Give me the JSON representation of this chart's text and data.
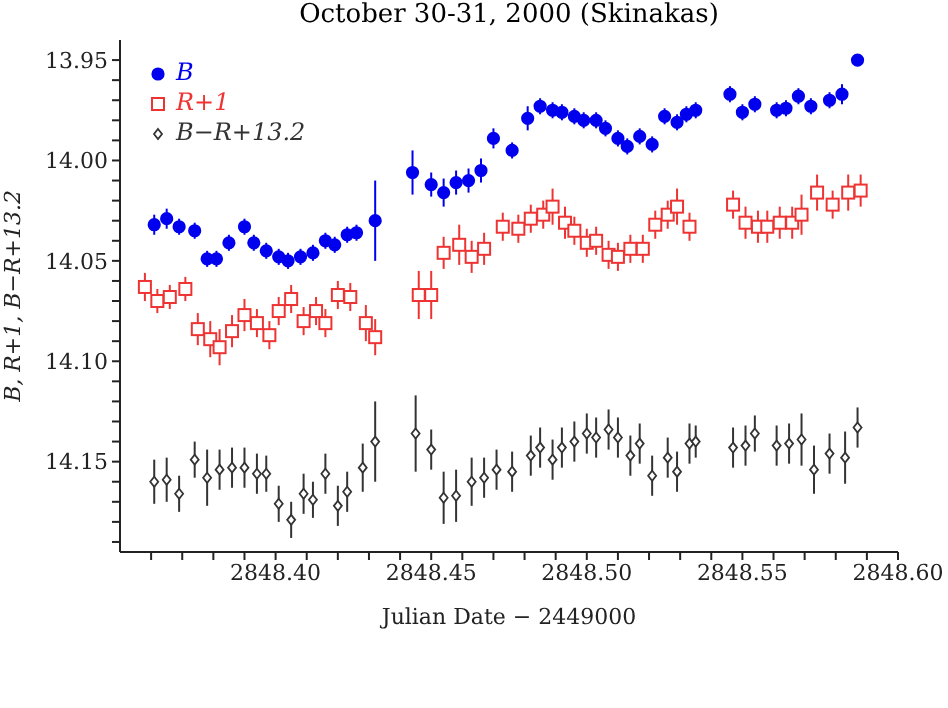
{
  "chart_data": {
    "type": "scatter",
    "title": "October 30-31, 2000 (Skinakas)",
    "xlabel": "Julian Date − 2449000",
    "ylabel": "B, R+1, B−R+13.2",
    "xlim": [
      2848.35,
      2848.6
    ],
    "ylim": [
      14.195,
      13.94
    ],
    "xticks": [
      {
        "value": 2848.36,
        "label": null
      },
      {
        "value": 2848.37,
        "label": null
      },
      {
        "value": 2848.38,
        "label": null
      },
      {
        "value": 2848.39,
        "label": null
      },
      {
        "value": 2848.4,
        "label": "2848.40"
      },
      {
        "value": 2848.41,
        "label": null
      },
      {
        "value": 2848.42,
        "label": null
      },
      {
        "value": 2848.43,
        "label": null
      },
      {
        "value": 2848.44,
        "label": null
      },
      {
        "value": 2848.45,
        "label": "2848.45"
      },
      {
        "value": 2848.46,
        "label": null
      },
      {
        "value": 2848.47,
        "label": null
      },
      {
        "value": 2848.48,
        "label": null
      },
      {
        "value": 2848.49,
        "label": null
      },
      {
        "value": 2848.5,
        "label": "2848.50"
      },
      {
        "value": 2848.51,
        "label": null
      },
      {
        "value": 2848.52,
        "label": null
      },
      {
        "value": 2848.53,
        "label": null
      },
      {
        "value": 2848.54,
        "label": null
      },
      {
        "value": 2848.55,
        "label": "2848.55"
      },
      {
        "value": 2848.56,
        "label": null
      },
      {
        "value": 2848.57,
        "label": null
      },
      {
        "value": 2848.58,
        "label": null
      },
      {
        "value": 2848.59,
        "label": null
      },
      {
        "value": 2848.6,
        "label": "2848.60"
      }
    ],
    "yticks": [
      {
        "value": 13.95,
        "label": "13.95"
      },
      {
        "value": 13.96,
        "label": null
      },
      {
        "value": 13.97,
        "label": null
      },
      {
        "value": 13.98,
        "label": null
      },
      {
        "value": 13.99,
        "label": null
      },
      {
        "value": 14.0,
        "label": "14.00"
      },
      {
        "value": 14.01,
        "label": null
      },
      {
        "value": 14.02,
        "label": null
      },
      {
        "value": 14.03,
        "label": null
      },
      {
        "value": 14.04,
        "label": null
      },
      {
        "value": 14.05,
        "label": "14.05"
      },
      {
        "value": 14.06,
        "label": null
      },
      {
        "value": 14.07,
        "label": null
      },
      {
        "value": 14.08,
        "label": null
      },
      {
        "value": 14.09,
        "label": null
      },
      {
        "value": 14.1,
        "label": "14.10"
      },
      {
        "value": 14.11,
        "label": null
      },
      {
        "value": 14.12,
        "label": null
      },
      {
        "value": 14.13,
        "label": null
      },
      {
        "value": 14.14,
        "label": null
      },
      {
        "value": 14.15,
        "label": "14.15"
      },
      {
        "value": 14.16,
        "label": null
      },
      {
        "value": 14.17,
        "label": null
      },
      {
        "value": 14.18,
        "label": null
      },
      {
        "value": 14.19,
        "label": null
      }
    ],
    "grid": false,
    "legend": "top left",
    "series": [
      {
        "name": "B",
        "color": "#0000ee",
        "marker": "circle",
        "x": [
          2848.361,
          2848.365,
          2848.369,
          2848.374,
          2848.378,
          2848.381,
          2848.385,
          2848.39,
          2848.393,
          2848.397,
          2848.401,
          2848.404,
          2848.408,
          2848.412,
          2848.416,
          2848.419,
          2848.423,
          2848.426,
          2848.432,
          2848.444,
          2848.45,
          2848.454,
          2848.458,
          2848.462,
          2848.466,
          2848.47,
          2848.476,
          2848.481,
          2848.485,
          2848.489,
          2848.492,
          2848.496,
          2848.499,
          2848.503,
          2848.506,
          2848.51,
          2848.513,
          2848.517,
          2848.521,
          2848.525,
          2848.529,
          2848.532,
          2848.535,
          2848.546,
          2848.55,
          2848.554,
          2848.561,
          2848.564,
          2848.568,
          2848.572,
          2848.578,
          2848.582,
          2848.587
        ],
        "values": [
          14.032,
          14.029,
          14.033,
          14.035,
          14.049,
          14.049,
          14.041,
          14.033,
          14.041,
          14.045,
          14.048,
          14.05,
          14.048,
          14.046,
          14.04,
          14.042,
          14.037,
          14.036,
          14.03,
          14.006,
          14.012,
          14.016,
          14.011,
          14.01,
          14.005,
          13.989,
          13.995,
          13.979,
          13.973,
          13.975,
          13.976,
          13.978,
          13.98,
          13.98,
          13.984,
          13.989,
          13.993,
          13.988,
          13.992,
          13.978,
          13.981,
          13.977,
          13.975,
          13.967,
          13.976,
          13.972,
          13.975,
          13.974,
          13.968,
          13.973,
          13.97,
          13.967,
          13.95
        ],
        "errors": [
          0.005,
          0.005,
          0.004,
          0.004,
          0.004,
          0.004,
          0.004,
          0.004,
          0.004,
          0.004,
          0.004,
          0.004,
          0.004,
          0.004,
          0.004,
          0.004,
          0.004,
          0.004,
          0.02,
          0.011,
          0.006,
          0.007,
          0.006,
          0.006,
          0.006,
          0.005,
          0.004,
          0.006,
          0.004,
          0.004,
          0.004,
          0.004,
          0.004,
          0.004,
          0.004,
          0.004,
          0.004,
          0.004,
          0.004,
          0.004,
          0.004,
          0.004,
          0.004,
          0.004,
          0.004,
          0.004,
          0.004,
          0.004,
          0.004,
          0.004,
          0.004,
          0.005,
          0.003
        ]
      },
      {
        "name": "R+1",
        "color": "#ee3333",
        "marker": "square",
        "x": [
          2848.358,
          2848.362,
          2848.366,
          2848.371,
          2848.375,
          2848.379,
          2848.382,
          2848.386,
          2848.39,
          2848.394,
          2848.398,
          2848.401,
          2848.405,
          2848.409,
          2848.413,
          2848.416,
          2848.42,
          2848.424,
          2848.429,
          2848.432,
          2848.446,
          2848.45,
          2848.454,
          2848.459,
          2848.463,
          2848.467,
          2848.473,
          2848.478,
          2848.482,
          2848.486,
          2848.489,
          2848.493,
          2848.496,
          2848.5,
          2848.503,
          2848.507,
          2848.51,
          2848.514,
          2848.518,
          2848.522,
          2848.526,
          2848.529,
          2848.533,
          2848.547,
          2848.551,
          2848.555,
          2848.558,
          2848.562,
          2848.566,
          2848.569,
          2848.574,
          2848.579,
          2848.584,
          2848.588
        ],
        "values": [
          14.063,
          14.07,
          14.068,
          14.064,
          14.084,
          14.089,
          14.093,
          14.085,
          14.077,
          14.081,
          14.087,
          14.075,
          14.069,
          14.08,
          14.075,
          14.081,
          14.067,
          14.068,
          14.081,
          14.088,
          14.067,
          14.067,
          14.046,
          14.042,
          14.048,
          14.044,
          14.033,
          14.034,
          14.029,
          14.027,
          14.023,
          14.031,
          14.035,
          14.041,
          14.04,
          14.047,
          14.048,
          14.044,
          14.044,
          14.032,
          14.027,
          14.023,
          14.033,
          14.022,
          14.031,
          14.033,
          14.033,
          14.031,
          14.031,
          14.027,
          14.016,
          14.022,
          14.016,
          14.015
        ],
        "errors": [
          0.007,
          0.006,
          0.006,
          0.006,
          0.008,
          0.009,
          0.009,
          0.008,
          0.008,
          0.007,
          0.007,
          0.007,
          0.007,
          0.007,
          0.007,
          0.007,
          0.007,
          0.007,
          0.009,
          0.009,
          0.012,
          0.012,
          0.008,
          0.01,
          0.008,
          0.008,
          0.007,
          0.007,
          0.007,
          0.007,
          0.009,
          0.008,
          0.007,
          0.007,
          0.007,
          0.007,
          0.007,
          0.007,
          0.007,
          0.007,
          0.007,
          0.009,
          0.007,
          0.007,
          0.008,
          0.008,
          0.008,
          0.008,
          0.008,
          0.01,
          0.009,
          0.007,
          0.009,
          0.008
        ]
      },
      {
        "name": "B−R+13.2",
        "color": "#333333",
        "marker": "diamond",
        "x": [
          2848.361,
          2848.365,
          2848.369,
          2848.374,
          2848.378,
          2848.382,
          2848.386,
          2848.39,
          2848.394,
          2848.397,
          2848.401,
          2848.405,
          2848.409,
          2848.412,
          2848.416,
          2848.42,
          2848.423,
          2848.428,
          2848.432,
          2848.445,
          2848.45,
          2848.454,
          2848.458,
          2848.463,
          2848.467,
          2848.471,
          2848.476,
          2848.482,
          2848.485,
          2848.489,
          2848.492,
          2848.496,
          2848.5,
          2848.503,
          2848.507,
          2848.51,
          2848.514,
          2848.517,
          2848.521,
          2848.526,
          2848.529,
          2848.533,
          2848.535,
          2848.547,
          2848.551,
          2848.554,
          2848.561,
          2848.565,
          2848.569,
          2848.573,
          2848.578,
          2848.583,
          2848.587
        ],
        "values": [
          14.16,
          14.159,
          14.166,
          14.149,
          14.158,
          14.154,
          14.153,
          14.153,
          14.156,
          14.156,
          14.171,
          14.179,
          14.166,
          14.169,
          14.156,
          14.172,
          14.165,
          14.153,
          14.14,
          14.136,
          14.144,
          14.168,
          14.167,
          14.16,
          14.158,
          14.154,
          14.155,
          14.147,
          14.143,
          14.149,
          14.143,
          14.14,
          14.136,
          14.138,
          14.134,
          14.138,
          14.147,
          14.141,
          14.157,
          14.148,
          14.155,
          14.141,
          14.14,
          14.143,
          14.142,
          14.136,
          14.142,
          14.141,
          14.139,
          14.154,
          14.146,
          14.148,
          14.133
        ],
        "errors": [
          0.011,
          0.011,
          0.009,
          0.009,
          0.014,
          0.01,
          0.01,
          0.01,
          0.01,
          0.009,
          0.009,
          0.009,
          0.01,
          0.009,
          0.01,
          0.01,
          0.01,
          0.012,
          0.02,
          0.019,
          0.01,
          0.013,
          0.013,
          0.012,
          0.01,
          0.01,
          0.01,
          0.01,
          0.01,
          0.01,
          0.01,
          0.01,
          0.01,
          0.01,
          0.01,
          0.01,
          0.01,
          0.01,
          0.01,
          0.01,
          0.01,
          0.01,
          0.008,
          0.01,
          0.01,
          0.009,
          0.01,
          0.01,
          0.013,
          0.012,
          0.01,
          0.013,
          0.01
        ]
      }
    ]
  }
}
